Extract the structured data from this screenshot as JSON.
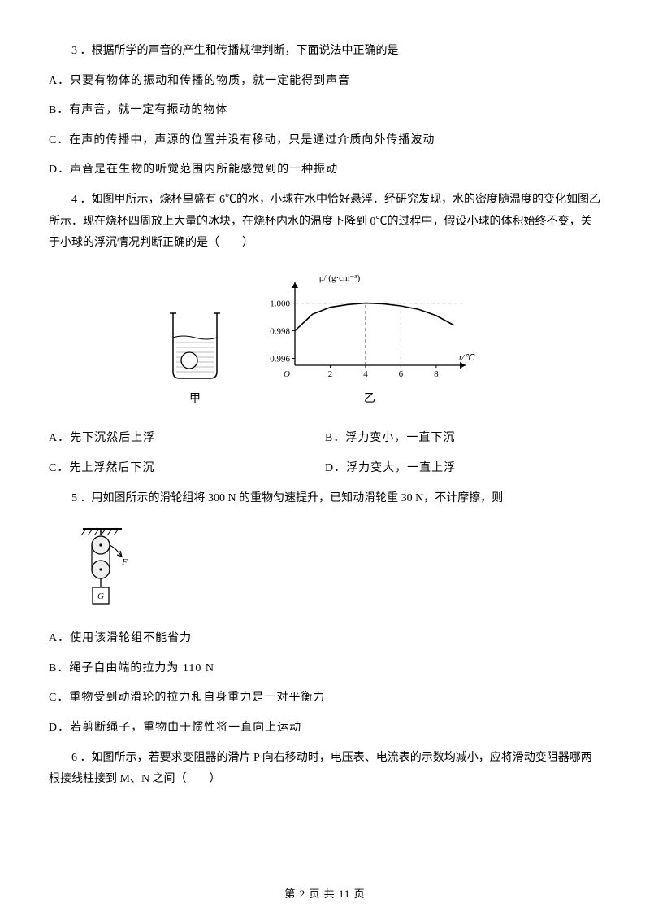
{
  "q3": {
    "stem": "3 ．根据所学的声音的产生和传播规律判断，下面说法中正确的是",
    "A": "A．只要有物体的振动和传播的物质，就一定能得到声音",
    "B": "B．有声音，就一定有振动的物体",
    "C": "C．在声的传播中，声源的位置并没有移动，只是通过介质向外传播波动",
    "D": "D．声音是在生物的听觉范围内所能感觉到的一种振动"
  },
  "q4": {
    "stem": "4 ．如图甲所示，烧杯里盛有 6℃的水，小球在水中恰好悬浮．经研究发现，水的密度随温度的变化如图乙所示．现在烧杯四周放上大量的冰块，在烧杯内水的温度下降到 0℃的过程中，假设小球的体积始终不变，关于小球的浮沉情况判断正确的是（　　）",
    "A": "A．先下沉然后上浮",
    "B": "B．浮力变小，一直下沉",
    "C": "C．先上浮然后下沉",
    "D": "D．浮力变大，一直上浮",
    "figA_label": "甲",
    "figB_label": "乙",
    "chart": {
      "type": "line",
      "x_label": "t/℃",
      "y_label": "ρ/ (g·cm⁻³)",
      "x_ticks": [
        2,
        4,
        6,
        8
      ],
      "y_ticks": [
        0.996,
        0.998,
        1.0
      ],
      "curve_points": [
        [
          0,
          0.998
        ],
        [
          1,
          0.9992
        ],
        [
          2,
          0.9997
        ],
        [
          3,
          0.9999
        ],
        [
          4,
          1.0
        ],
        [
          5,
          0.99995
        ],
        [
          6,
          0.9998
        ],
        [
          7,
          0.99955
        ],
        [
          8,
          0.9991
        ],
        [
          9,
          0.9984
        ]
      ],
      "dash_x": [
        4,
        6
      ],
      "dash_top_at_1": true,
      "axis_color": "#000000",
      "grid_color": "#555555",
      "line_color": "#000000",
      "bg": "#ffffff",
      "font_size": 11
    }
  },
  "q5": {
    "stem": "5 ．用如图所示的滑轮组将 300 N 的重物匀速提升，已知动滑轮重 30 N，不计摩擦，则",
    "A": "A．使用该滑轮组不能省力",
    "B": "B．绳子自由端的拉力为 110 N",
    "C": "C．重物受到动滑轮的拉力和自身重力是一对平衡力",
    "D": "D．若剪断绳子，重物由于惯性将一直向上运动",
    "fig": {
      "label_F": "F",
      "label_G": "G"
    }
  },
  "q6": {
    "stem": "6 ．如图所示，若要求变阻器的滑片 P 向右移动时，电压表、电流表的示数均减小，应将滑动变阻器哪两根接线柱接到 M、N 之间（　　）"
  },
  "footer": {
    "page_cur": "2",
    "page_total": "11",
    "prefix": "第",
    "mid": "页 共",
    "suffix": "页"
  },
  "colors": {
    "text": "#000000",
    "bg": "#ffffff"
  }
}
